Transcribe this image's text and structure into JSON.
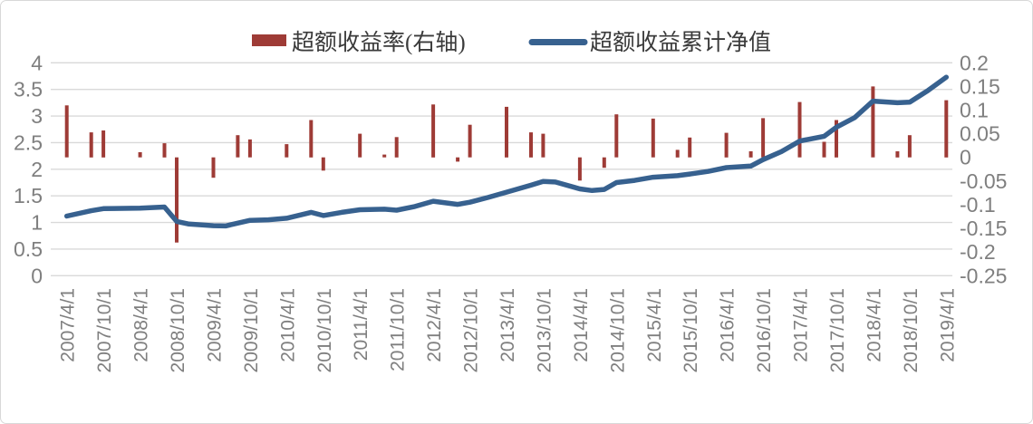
{
  "colors": {
    "bar": "#9e3b36",
    "line": "#37618f",
    "grid": "#d9d9d9",
    "tick_text": "#7f7f7f",
    "legend_text": "#3a3a3a",
    "background": "#ffffff",
    "border": "#d8d8d8"
  },
  "chart_data": {
    "type": "combo",
    "grid": "horizontal",
    "legend_position": "top-center",
    "left_axis": {
      "min": 0,
      "max": 4,
      "step": 0.5,
      "ticks": [
        "4",
        "3.5",
        "3",
        "2.5",
        "2",
        "1.5",
        "1",
        "0.5",
        "0"
      ]
    },
    "right_axis": {
      "min": -0.25,
      "max": 0.2,
      "step": 0.05,
      "ticks": [
        "0.2",
        "0.15",
        "0.1",
        "0.05",
        "0",
        "-0.05",
        "-0.1",
        "-0.15",
        "-0.2",
        "-0.25"
      ]
    },
    "x_axis": {
      "labels": [
        "2007/4/1",
        "2007/10/1",
        "2008/4/1",
        "2008/10/1",
        "2009/4/1",
        "2009/10/1",
        "2010/4/1",
        "2010/10/1",
        "2011/4/1",
        "2011/10/1",
        "2012/4/1",
        "2012/10/1",
        "2013/4/1",
        "2013/10/1",
        "2014/4/1",
        "2014/10/1",
        "2015/4/1",
        "2015/10/1",
        "2016/4/1",
        "2016/10/1",
        "2017/4/1",
        "2017/10/1",
        "2018/4/1",
        "2018/10/1",
        "2019/4/1"
      ]
    },
    "series": [
      {
        "name": "超额收益率(右轴)",
        "type": "bar",
        "axis": "right",
        "color": "#9e3b36",
        "points": [
          [
            "2007/4/1",
            0.11
          ],
          [
            "2007/8/1",
            0.053
          ],
          [
            "2007/10/1",
            0.057
          ],
          [
            "2008/4/1",
            0.011
          ],
          [
            "2008/8/1",
            0.03
          ],
          [
            "2008/10/1",
            -0.18
          ],
          [
            "2009/4/1",
            -0.043
          ],
          [
            "2009/8/1",
            0.047
          ],
          [
            "2009/10/1",
            0.038
          ],
          [
            "2010/4/1",
            0.028
          ],
          [
            "2010/8/1",
            0.079
          ],
          [
            "2010/10/1",
            -0.028
          ],
          [
            "2011/4/1",
            0.05
          ],
          [
            "2011/8/1",
            0.006
          ],
          [
            "2011/10/1",
            0.043
          ],
          [
            "2012/4/1",
            0.112
          ],
          [
            "2012/8/1",
            -0.009
          ],
          [
            "2012/10/1",
            0.069
          ],
          [
            "2013/4/1",
            0.107
          ],
          [
            "2013/8/1",
            0.053
          ],
          [
            "2013/10/1",
            0.05
          ],
          [
            "2014/4/1",
            -0.049
          ],
          [
            "2014/8/1",
            -0.022
          ],
          [
            "2014/10/1",
            0.091
          ],
          [
            "2015/4/1",
            0.082
          ],
          [
            "2015/8/1",
            0.016
          ],
          [
            "2015/10/1",
            0.042
          ],
          [
            "2016/4/1",
            0.052
          ],
          [
            "2016/8/1",
            0.013
          ],
          [
            "2016/10/1",
            0.083
          ],
          [
            "2017/4/1",
            0.117
          ],
          [
            "2017/8/1",
            0.033
          ],
          [
            "2017/10/1",
            0.079
          ],
          [
            "2018/4/1",
            0.15
          ],
          [
            "2018/8/1",
            0.013
          ],
          [
            "2018/10/1",
            0.047
          ],
          [
            "2019/4/1",
            0.121
          ]
        ]
      },
      {
        "name": "超额收益累计净值",
        "type": "line",
        "axis": "left",
        "color": "#37618f",
        "points": [
          [
            "2007/4/1",
            1.12
          ],
          [
            "2007/8/1",
            1.22
          ],
          [
            "2007/10/1",
            1.26
          ],
          [
            "2008/4/1",
            1.27
          ],
          [
            "2008/8/1",
            1.29
          ],
          [
            "2008/10/1",
            1.02
          ],
          [
            "2008/12/1",
            0.97
          ],
          [
            "2009/4/1",
            0.94
          ],
          [
            "2009/6/1",
            0.935
          ],
          [
            "2009/10/1",
            1.04
          ],
          [
            "2010/1/1",
            1.05
          ],
          [
            "2010/4/1",
            1.08
          ],
          [
            "2010/8/1",
            1.19
          ],
          [
            "2010/10/1",
            1.13
          ],
          [
            "2011/1/1",
            1.19
          ],
          [
            "2011/4/1",
            1.24
          ],
          [
            "2011/8/1",
            1.25
          ],
          [
            "2011/10/1",
            1.23
          ],
          [
            "2012/1/1",
            1.3
          ],
          [
            "2012/4/1",
            1.4
          ],
          [
            "2012/8/1",
            1.34
          ],
          [
            "2012/10/1",
            1.38
          ],
          [
            "2013/1/1",
            1.47
          ],
          [
            "2013/4/1",
            1.57
          ],
          [
            "2013/8/1",
            1.7
          ],
          [
            "2013/10/1",
            1.77
          ],
          [
            "2013/12/1",
            1.76
          ],
          [
            "2014/4/1",
            1.63
          ],
          [
            "2014/6/1",
            1.6
          ],
          [
            "2014/8/1",
            1.62
          ],
          [
            "2014/10/1",
            1.75
          ],
          [
            "2015/1/1",
            1.79
          ],
          [
            "2015/4/1",
            1.85
          ],
          [
            "2015/8/1",
            1.88
          ],
          [
            "2015/10/1",
            1.91
          ],
          [
            "2016/1/1",
            1.96
          ],
          [
            "2016/4/1",
            2.03
          ],
          [
            "2016/8/1",
            2.06
          ],
          [
            "2016/10/1",
            2.18
          ],
          [
            "2017/1/1",
            2.33
          ],
          [
            "2017/4/1",
            2.53
          ],
          [
            "2017/8/1",
            2.62
          ],
          [
            "2017/10/1",
            2.79
          ],
          [
            "2018/1/1",
            2.97
          ],
          [
            "2018/4/1",
            3.28
          ],
          [
            "2018/8/1",
            3.25
          ],
          [
            "2018/10/1",
            3.26
          ],
          [
            "2019/1/1",
            3.48
          ],
          [
            "2019/4/1",
            3.73
          ]
        ]
      }
    ],
    "legend": [
      {
        "label": "超额收益率(右轴)",
        "swatch": "bar",
        "color": "#9e3b36"
      },
      {
        "label": "超额收益累计净值",
        "swatch": "line",
        "color": "#37618f"
      }
    ]
  }
}
